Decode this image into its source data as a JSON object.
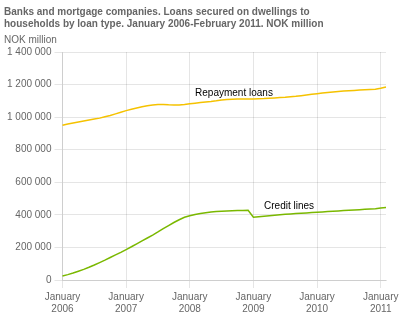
{
  "chart_data": {
    "type": "line",
    "title": "Banks and mortgage companies. Loans secured on dwellings to\nhouseholds by loan type. January 2006-February 2011. NOK million",
    "y_label": "NOK million",
    "categories": [
      "January\n2006",
      null,
      null,
      null,
      null,
      null,
      null,
      null,
      null,
      null,
      null,
      null,
      "January\n2007",
      null,
      null,
      null,
      null,
      null,
      null,
      null,
      null,
      null,
      null,
      null,
      "January\n2008",
      null,
      null,
      null,
      null,
      null,
      null,
      null,
      null,
      null,
      null,
      null,
      "January\n2009",
      null,
      null,
      null,
      null,
      null,
      null,
      null,
      null,
      null,
      null,
      null,
      "January\n2010",
      null,
      null,
      null,
      null,
      null,
      null,
      null,
      null,
      null,
      null,
      null,
      "January\n2011",
      null
    ],
    "series": [
      {
        "name": "Repayment loans",
        "color": "#f5c200",
        "values": [
          950000,
          958000,
          964000,
          970000,
          976000,
          982000,
          988000,
          994000,
          1002000,
          1010000,
          1020000,
          1030000,
          1040000,
          1048000,
          1056000,
          1064000,
          1070000,
          1075000,
          1078000,
          1078000,
          1076000,
          1075000,
          1075000,
          1078000,
          1082000,
          1086000,
          1090000,
          1093000,
          1096000,
          1100000,
          1105000,
          1108000,
          1110000,
          1112000,
          1112000,
          1112000,
          1112000,
          1113000,
          1114000,
          1116000,
          1118000,
          1120000,
          1122000,
          1125000,
          1128000,
          1132000,
          1136000,
          1140000,
          1144000,
          1148000,
          1152000,
          1155000,
          1158000,
          1160000,
          1162000,
          1164000,
          1166000,
          1168000,
          1170000,
          1172000,
          1178000,
          1185000
        ]
      },
      {
        "name": "Credit lines",
        "color": "#7ab800",
        "values": [
          25000,
          33000,
          43000,
          54000,
          65000,
          78000,
          92000,
          107000,
          122000,
          138000,
          154000,
          170000,
          187000,
          204000,
          222000,
          240000,
          258000,
          276000,
          295000,
          315000,
          334000,
          353000,
          370000,
          385000,
          395000,
          402000,
          408000,
          413000,
          417000,
          420000,
          422000,
          424000,
          425000,
          426000,
          427000,
          428000,
          385000,
          388000,
          391000,
          394000,
          397000,
          400000,
          403000,
          406000,
          408000,
          410000,
          412000,
          414000,
          416000,
          418000,
          420000,
          422000,
          424000,
          426000,
          428000,
          430000,
          432000,
          434000,
          436000,
          438000,
          442000,
          445000
        ]
      }
    ],
    "ylim": [
      0,
      1400000
    ],
    "yticks": [
      0,
      {
        "value": 200000,
        "label": "200 000"
      },
      {
        "value": 400000,
        "label": "400 000"
      },
      {
        "value": 600000,
        "label": "600 000"
      },
      {
        "value": 800000,
        "label": "800 000"
      },
      {
        "value": 1000000,
        "label": "1 000 000"
      },
      {
        "value": 1200000,
        "label": "1 200 000"
      },
      {
        "value": 1400000,
        "label": "1 400 000"
      }
    ],
    "grid": true,
    "legend": false
  }
}
